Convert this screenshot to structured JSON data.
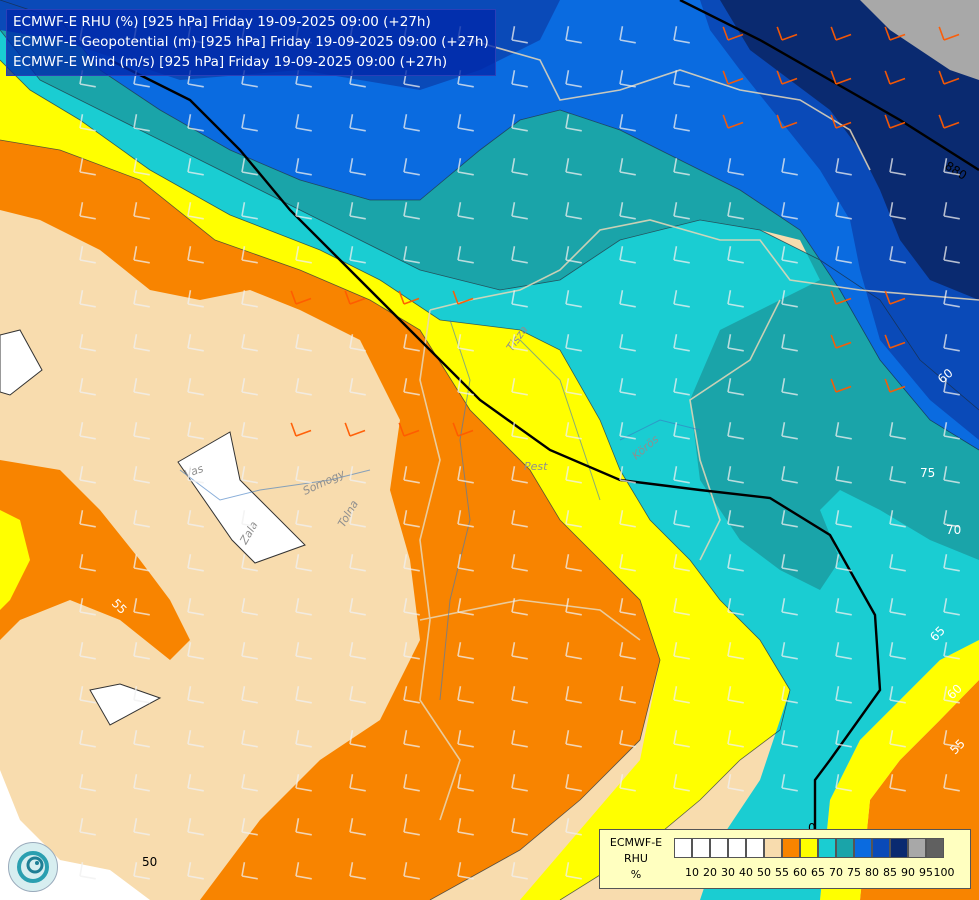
{
  "title": {
    "lines": [
      "ECMWF-E RHU (%) [925 hPa] Friday 19-09-2025 09:00 (+27h)",
      "ECMWF-E Geopotential (m) [925 hPa] Friday 19-09-2025 09:00 (+27h)",
      "ECMWF-E Wind (m/s) [925 hPa] Friday 19-09-2025 09:00 (+27h)"
    ]
  },
  "legend": {
    "label_lines": [
      "ECMWF-E",
      "RHU",
      "%"
    ],
    "ticks": [
      "10",
      "20",
      "30",
      "40",
      "50",
      "55",
      "60",
      "65",
      "70",
      "75",
      "80",
      "85",
      "90",
      "95",
      "100"
    ],
    "colors": [
      "#ffffff",
      "#ffffff",
      "#ffffff",
      "#ffffff",
      "#ffffff",
      "#f8dcae",
      "#f88400",
      "#ffff00",
      "#1acdd2",
      "#1aa4a9",
      "#0a6be0",
      "#0a4ab8",
      "#0a2a70",
      "#a8a8a8",
      "#606060"
    ]
  },
  "geopotential_labels": [
    "880",
    "60",
    "75",
    "70",
    "65",
    "60",
    "55",
    "55",
    "50",
    "0"
  ],
  "rivers": [
    "Tisza",
    "Körös",
    "Vas",
    "Zala",
    "Somogy",
    "Tolna",
    "Pest"
  ],
  "colors": {
    "rhu_55": "#f8dcae",
    "rhu_60": "#f88400",
    "rhu_65": "#ffff00",
    "rhu_70": "#1acdd2",
    "rhu_75": "#1aa4a9",
    "rhu_80": "#0a6be0",
    "rhu_85": "#0a4ab8",
    "rhu_90": "#0a2a70",
    "rhu_95": "#a8a8a8",
    "barb_light": "#f0f0f0",
    "barb_warm": "#ff5a00"
  }
}
